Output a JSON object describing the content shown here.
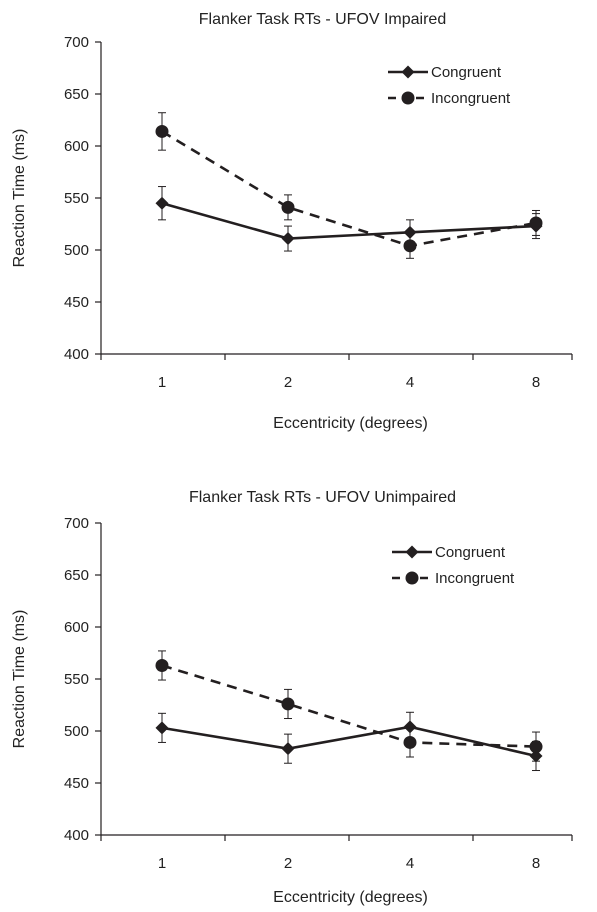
{
  "chart_data": [
    {
      "type": "line",
      "title": "Flanker Task  RTs - UFOV Impaired",
      "xlabel": "Eccentricity (degrees)",
      "ylabel": "Reaction Time (ms)",
      "categories": [
        "1",
        "2",
        "4",
        "8"
      ],
      "ylim": [
        400,
        700
      ],
      "yticks": [
        "400",
        "450",
        "500",
        "550",
        "600",
        "650",
        "700"
      ],
      "grid": false,
      "legend_position": "top-right",
      "series": [
        {
          "name": "Congruent",
          "values": [
            545,
            511,
            517,
            523
          ],
          "error": [
            16,
            12,
            12,
            12
          ],
          "marker": "diamond",
          "line": "solid",
          "color": "#231f20"
        },
        {
          "name": "Incongruent",
          "values": [
            614,
            541,
            504,
            526
          ],
          "error": [
            18,
            12,
            12,
            12
          ],
          "marker": "circle",
          "line": "dashed",
          "color": "#231f20"
        }
      ]
    },
    {
      "type": "line",
      "title": "Flanker Task  RTs - UFOV Unimpaired",
      "xlabel": "Eccentricity (degrees)",
      "ylabel": "Reaction Time (ms)",
      "categories": [
        "1",
        "2",
        "4",
        "8"
      ],
      "ylim": [
        400,
        700
      ],
      "yticks": [
        "400",
        "450",
        "500",
        "550",
        "600",
        "650",
        "700"
      ],
      "grid": false,
      "legend_position": "top-right",
      "series": [
        {
          "name": "Congruent",
          "values": [
            503,
            483,
            504,
            476
          ],
          "error": [
            14,
            14,
            14,
            14
          ],
          "marker": "diamond",
          "line": "solid",
          "color": "#231f20"
        },
        {
          "name": "Incongruent",
          "values": [
            563,
            526,
            489,
            485
          ],
          "error": [
            14,
            14,
            14,
            14
          ],
          "marker": "circle",
          "line": "dashed",
          "color": "#231f20"
        }
      ]
    }
  ]
}
